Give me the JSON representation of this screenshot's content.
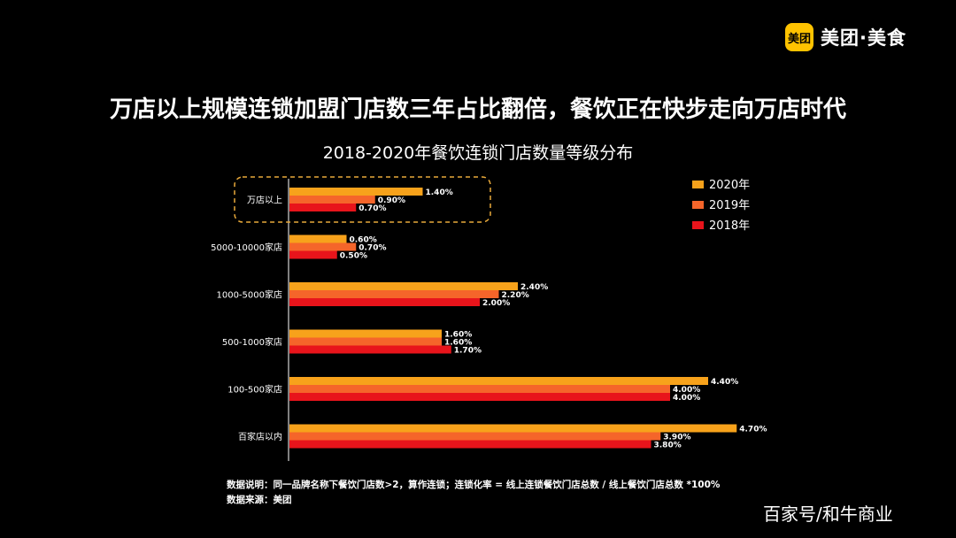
{
  "logo": {
    "badge": "美团",
    "name": "美团·美食"
  },
  "headline": "万店以上规模连锁加盟门店数三年占比翻倍，餐饮正在快步走向万店时代",
  "chart_data": {
    "type": "bar",
    "orientation": "horizontal",
    "title": "2018-2020年餐饮连锁门店数量等级分布",
    "categories": [
      "万店以上",
      "5000-10000家店",
      "1000-5000家店",
      "500-1000家店",
      "100-500家店",
      "百家店以内"
    ],
    "series": [
      {
        "name": "2020年",
        "color": "#F7A21B",
        "values": [
          1.4,
          0.6,
          2.4,
          1.6,
          4.4,
          4.7
        ],
        "labels": [
          "1.40%",
          "0.60%",
          "2.40%",
          "1.60%",
          "4.40%",
          "4.70%"
        ]
      },
      {
        "name": "2019年",
        "color": "#F5652A",
        "values": [
          0.9,
          0.7,
          2.2,
          1.6,
          4.0,
          3.9
        ],
        "labels": [
          "0.90%",
          "0.70%",
          "2.20%",
          "1.60%",
          "4.00%",
          "3.90%"
        ]
      },
      {
        "name": "2018年",
        "color": "#E8141B",
        "values": [
          0.7,
          0.5,
          2.0,
          1.7,
          4.0,
          3.8
        ],
        "labels": [
          "0.70%",
          "0.50%",
          "2.00%",
          "1.70%",
          "4.00%",
          "3.80%"
        ]
      }
    ],
    "legend_position": "top-right",
    "highlighted_category": "万店以上",
    "highlight_color": "#E8A93A",
    "grid": false
  },
  "notes": {
    "line1": "数据说明：同一品牌名称下餐饮门店数>2，算作连锁；连锁化率 = 线上连锁餐饮门店总数 / 线上餐饮门店总数 *100%",
    "line2": "数据来源：美团"
  },
  "watermark": "百家号/和牛商业"
}
